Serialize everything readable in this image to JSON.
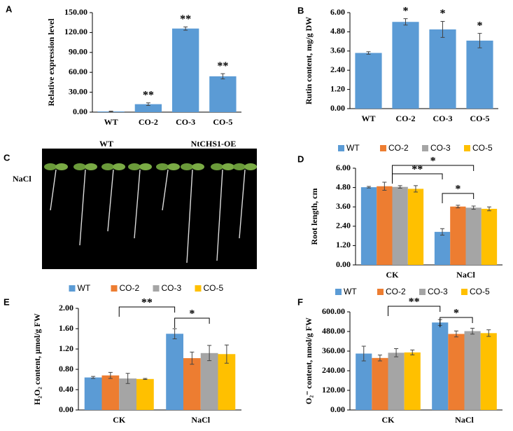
{
  "chart_data": [
    {
      "type": "bar",
      "panel": "A",
      "y_label": "Relative expression level",
      "categories": [
        "WT",
        "CO-2",
        "CO-3",
        "CO-5"
      ],
      "values": [
        1,
        12,
        126,
        54
      ],
      "errors": [
        0.5,
        2,
        2.5,
        4
      ],
      "significance": [
        null,
        "**",
        "**",
        "**"
      ],
      "color": "#5b9bd5",
      "ylim": [
        0,
        150
      ],
      "yticks": [
        {
          "value": 0,
          "label": "0.00"
        },
        {
          "value": 30,
          "label": "30.00"
        },
        {
          "value": 60,
          "label": "60.00"
        },
        {
          "value": 90,
          "label": "90.00"
        },
        {
          "value": 120,
          "label": "120.00"
        },
        {
          "value": 150,
          "label": "150.00"
        }
      ],
      "grid": false
    },
    {
      "type": "bar",
      "panel": "B",
      "y_label": "Rutin content, mg/g DW",
      "categories": [
        "WT",
        "CO-2",
        "CO-3",
        "CO-5"
      ],
      "values": [
        3.48,
        5.42,
        4.95,
        4.25
      ],
      "errors": [
        0.08,
        0.2,
        0.5,
        0.45
      ],
      "significance": [
        null,
        "*",
        "*",
        "*"
      ],
      "color": "#5b9bd5",
      "ylim": [
        0,
        6
      ],
      "yticks": [
        {
          "value": 0,
          "label": "0.00"
        },
        {
          "value": 1.2,
          "label": "1.20"
        },
        {
          "value": 2.4,
          "label": "2.40"
        },
        {
          "value": 3.6,
          "label": "3.60"
        },
        {
          "value": 4.8,
          "label": "4.80"
        },
        {
          "value": 6,
          "label": "6.00"
        }
      ],
      "grid": false
    },
    {
      "type": "bar",
      "panel": "D",
      "y_label": "Root length, cm",
      "categories": [
        "CK",
        "NaCl"
      ],
      "series": [
        {
          "name": "WT",
          "color": "#5b9bd5",
          "values": [
            4.82,
            2.05
          ],
          "errors": [
            0.05,
            0.2
          ]
        },
        {
          "name": "CO-2",
          "color": "#ed7d31",
          "values": [
            4.88,
            3.62
          ],
          "errors": [
            0.25,
            0.08
          ]
        },
        {
          "name": "CO-3",
          "color": "#a5a5a5",
          "values": [
            4.84,
            3.55
          ],
          "errors": [
            0.08,
            0.1
          ]
        },
        {
          "name": "CO-5",
          "color": "#ffc000",
          "values": [
            4.72,
            3.48
          ],
          "errors": [
            0.2,
            0.12
          ]
        }
      ],
      "annotations": [
        "*",
        "**",
        "*"
      ],
      "legend": "top",
      "ylim": [
        0,
        6
      ],
      "yticks": [
        {
          "value": 0,
          "label": "0.00"
        },
        {
          "value": 1.2,
          "label": "1.20"
        },
        {
          "value": 2.4,
          "label": "2.40"
        },
        {
          "value": 3.6,
          "label": "3.60"
        },
        {
          "value": 4.8,
          "label": "4.80"
        },
        {
          "value": 6,
          "label": "6.00"
        }
      ],
      "grid": false
    },
    {
      "type": "bar",
      "panel": "E",
      "y_label": "H₂O₂ content, μmol/g FW",
      "categories": [
        "CK",
        "NaCl"
      ],
      "series": [
        {
          "name": "WT",
          "color": "#5b9bd5",
          "values": [
            0.64,
            1.5
          ],
          "errors": [
            0.02,
            0.1
          ]
        },
        {
          "name": "CO-2",
          "color": "#ed7d31",
          "values": [
            0.68,
            1.02
          ],
          "errors": [
            0.06,
            0.12
          ]
        },
        {
          "name": "CO-3",
          "color": "#a5a5a5",
          "values": [
            0.62,
            1.12
          ],
          "errors": [
            0.1,
            0.15
          ]
        },
        {
          "name": "CO-5",
          "color": "#ffc000",
          "values": [
            0.61,
            1.1
          ],
          "errors": [
            0.01,
            0.18
          ]
        }
      ],
      "annotations": [
        "**",
        "*"
      ],
      "legend": "top",
      "ylim": [
        0,
        2
      ],
      "yticks": [
        {
          "value": 0,
          "label": "0.00"
        },
        {
          "value": 0.4,
          "label": "0.40"
        },
        {
          "value": 0.8,
          "label": "0.80"
        },
        {
          "value": 1.2,
          "label": "1.20"
        },
        {
          "value": 1.6,
          "label": "1.60"
        },
        {
          "value": 2,
          "label": "2.00"
        }
      ],
      "grid": false
    },
    {
      "type": "bar",
      "panel": "F",
      "y_label": "O₂⁻ content, nmol/g FW",
      "categories": [
        "CK",
        "NaCl"
      ],
      "series": [
        {
          "name": "WT",
          "color": "#5b9bd5",
          "values": [
            345,
            535
          ],
          "errors": [
            45,
            18
          ]
        },
        {
          "name": "CO-2",
          "color": "#ed7d31",
          "values": [
            318,
            465
          ],
          "errors": [
            18,
            18
          ]
        },
        {
          "name": "CO-3",
          "color": "#a5a5a5",
          "values": [
            350,
            482
          ],
          "errors": [
            25,
            18
          ]
        },
        {
          "name": "CO-5",
          "color": "#ffc000",
          "values": [
            352,
            470
          ],
          "errors": [
            15,
            20
          ]
        }
      ],
      "annotations": [
        "**",
        "*"
      ],
      "legend": "top",
      "ylim": [
        0,
        600
      ],
      "yticks": [
        {
          "value": 0,
          "label": "0.00"
        },
        {
          "value": 120,
          "label": "120.00"
        },
        {
          "value": 240,
          "label": "240.00"
        },
        {
          "value": 360,
          "label": "360.00"
        },
        {
          "value": 480,
          "label": "480.00"
        },
        {
          "value": 600,
          "label": "600.00"
        }
      ],
      "grid": false
    }
  ],
  "photo": {
    "panel": "C",
    "groups": [
      "WT",
      "NtCHS1-OE"
    ],
    "treatment": "NaCl"
  }
}
